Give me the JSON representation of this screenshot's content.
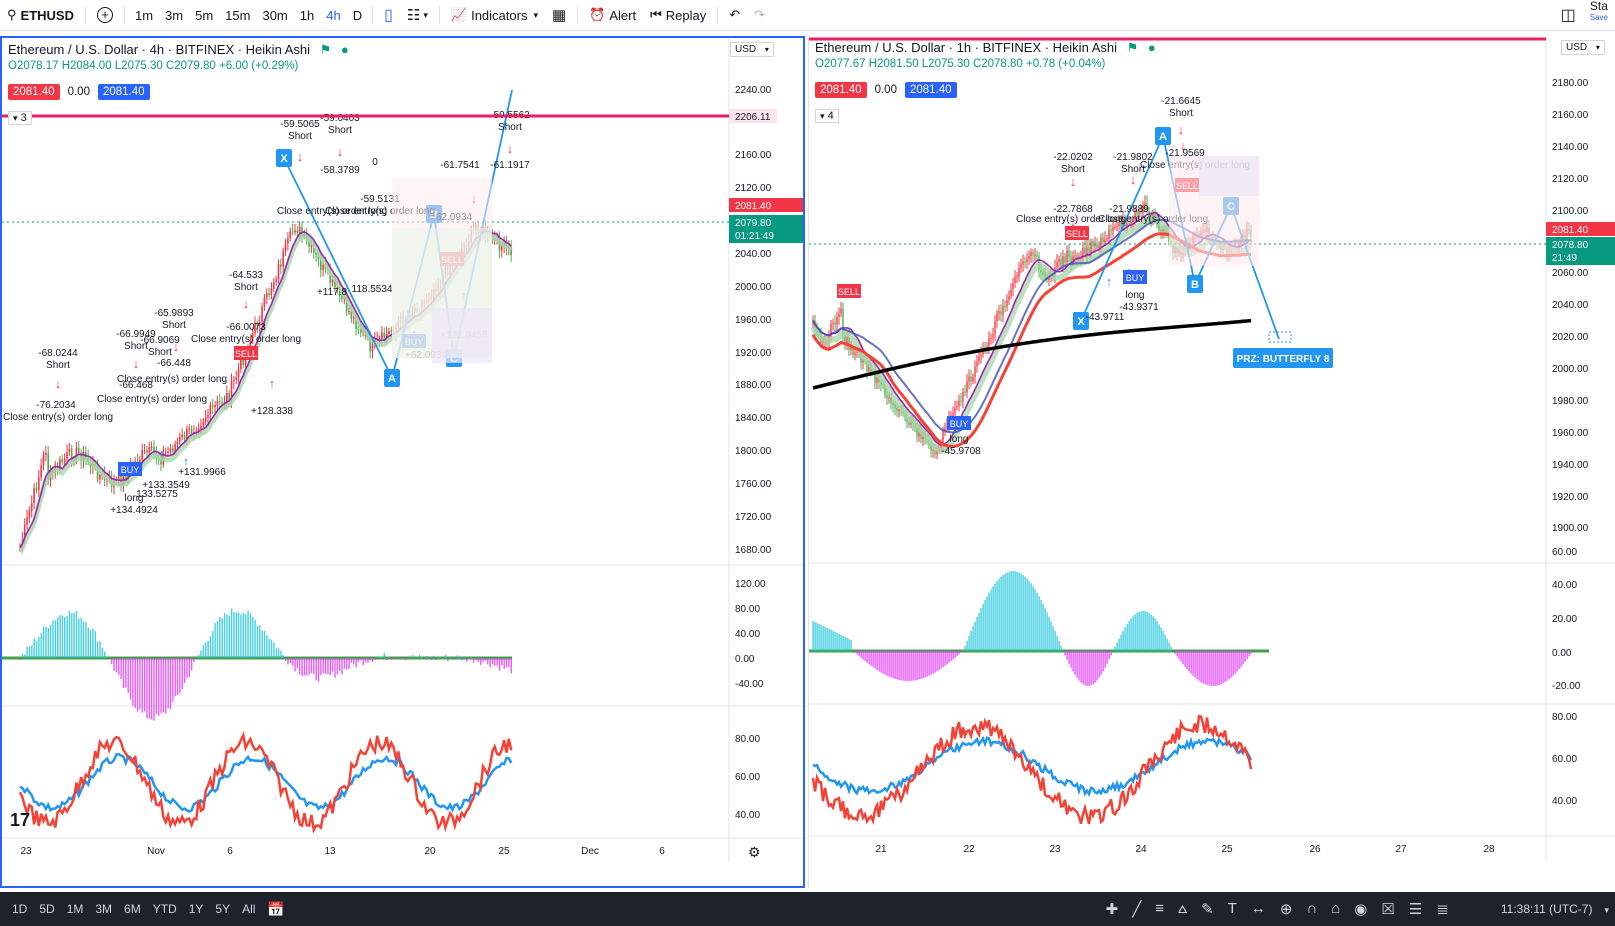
{
  "toolbar": {
    "symbol": "ETHUSD",
    "intervals": [
      "1m",
      "3m",
      "5m",
      "15m",
      "30m",
      "1h",
      "4h",
      "D"
    ],
    "active_interval": "4h",
    "indicators_label": "Indicators",
    "alert_label": "Alert",
    "replay_label": "Replay",
    "right_label": "Sta",
    "right_sub": "Save"
  },
  "left": {
    "legend": "Ethereum / U.S. Dollar · 4h · BITFINEX · Heikin Ashi",
    "ohlc": "O2078.17 H2084.00 L2075.30 C2079.80 +6.00 (+0.29%)",
    "bid": "2081.40",
    "spread": "0.00",
    "ask": "2081.40",
    "count": "3",
    "currency": "USD",
    "price_ticks": [
      "2240.00",
      "2160.00",
      "2120.00",
      "2080.00",
      "2040.00",
      "2000.00",
      "1960.00",
      "1920.00",
      "1880.00",
      "1840.00",
      "1800.00",
      "1760.00",
      "1720.00",
      "1680.00"
    ],
    "level_label": "2206.11",
    "last_price_red": "2081.40",
    "last_price_green": "2079.80",
    "countdown": "01:21:49",
    "osc_ticks": [
      "120.00",
      "80.00",
      "40.00",
      "0.00",
      "-40.00"
    ],
    "rsi_ticks": [
      "80.00",
      "60.00",
      "40.00"
    ],
    "time_ticks": [
      "23",
      "Nov",
      "6",
      "13",
      "20",
      "25",
      "Dec",
      "6"
    ],
    "pattern_points": [
      "X",
      "A",
      "B",
      "C"
    ],
    "trade_labels": [
      "-68.0244",
      "Short",
      "-76.2034",
      "Close entry(s) order long",
      "-66.9949",
      "Short",
      "-66.9069",
      "Short",
      "-66.448",
      "-66.468",
      "-65.9893",
      "Short",
      "-66.0073",
      "Close entry(s) order long",
      "-64.533",
      "Short",
      "-59.5065",
      "Short",
      "-59.0403",
      "Short",
      "-58.3789",
      "-59.5131",
      "-61.7541",
      "-61.1917",
      "-59.5562",
      "Short",
      "long",
      "+134.4924",
      "+133.3549",
      "133.5275",
      "+131.9966",
      "+128.338",
      "+117.8",
      "118.5534",
      "+62.0934",
      "+122.9458",
      "62.0934",
      "BUY",
      "SELL",
      "Close entry(s) order long",
      "Close entry(s) order long",
      "Close entry(s) order long",
      "Close entry(s) order long",
      "0"
    ]
  },
  "right": {
    "legend": "Ethereum / U.S. Dollar · 1h · BITFINEX · Heikin Ashi",
    "ohlc": "O2077.67 H2081.50 L2075.30 C2078.80 +0.78 (+0.04%)",
    "bid": "2081.40",
    "spread": "0.00",
    "ask": "2081.40",
    "count": "4",
    "currency": "USD",
    "price_ticks": [
      "2180.00",
      "2160.00",
      "2140.00",
      "2120.00",
      "2100.00",
      "2060.00",
      "2040.00",
      "2020.00",
      "2000.00",
      "1980.00",
      "1960.00",
      "1940.00",
      "1920.00",
      "1900.00"
    ],
    "last_price_red": "2081.40",
    "last_price_green": "2078.80",
    "countdown": "21:49",
    "osc_ticks": [
      "60.00",
      "40.00",
      "20.00",
      "0.00",
      "-20.00"
    ],
    "rsi_ticks": [
      "80.00",
      "60.00",
      "40.00"
    ],
    "time_ticks": [
      "21",
      "22",
      "23",
      "24",
      "25",
      "26",
      "27",
      "28"
    ],
    "prz_label": "PRZ: BUTTERFLY 8",
    "pattern_points": [
      "X",
      "A",
      "B",
      "C"
    ],
    "trade_labels": [
      "-21.6645",
      "Short",
      "-22.0202",
      "Short",
      "-21.9802",
      "Short",
      "-21.9569",
      "-22.7868",
      "-21.9889",
      "-43.9371",
      "-43.9711",
      "-45.9708",
      "SELL",
      "BUY",
      "BUY",
      "long",
      "long",
      "Close entry(s) order long",
      "Close entry(s) order long",
      "Close entry(s) order long"
    ]
  },
  "bottom": {
    "ranges": [
      "1D",
      "5D",
      "1M",
      "3M",
      "6M",
      "YTD",
      "1Y",
      "5Y",
      "All"
    ],
    "clock": "11:38:11 (UTC-7)"
  },
  "colors": {
    "accent": "#2962ff",
    "red": "#f23645",
    "green": "#089981",
    "cyan": "#26c6da",
    "magenta": "#e040fb",
    "level": "#e91e63"
  }
}
